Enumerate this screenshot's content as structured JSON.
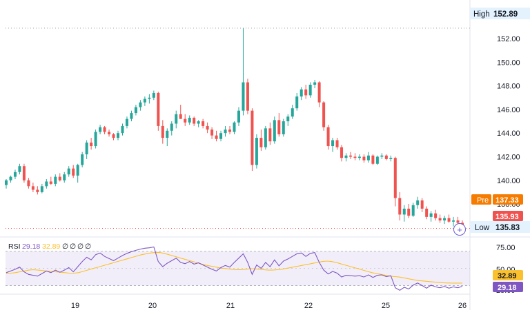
{
  "window": {
    "top_text": ""
  },
  "price_labels": {
    "high_label": "High",
    "high_value": "152.89",
    "pre_label": "Pre",
    "pre_value": "137.33",
    "last_value": "135.93",
    "low_label": "Low",
    "low_value": "135.83"
  },
  "rsi_legend": {
    "name": "RSI",
    "v1": "29.18",
    "v2": "32.89",
    "rest": [
      "∅",
      "∅",
      "∅",
      "∅"
    ]
  },
  "rsi_labels": {
    "top": "75.00",
    "mid": "50.00",
    "ma": "32.89",
    "rsi": "29.18",
    "bottom": "25.00"
  },
  "controls": {
    "add_icon": "plus-circle-icon",
    "add_glyph": "+"
  },
  "colors": {
    "up": "#26a69a",
    "down": "#ef5350",
    "rsi": "#7e57c2",
    "rsi_ma": "#fbc02d",
    "pre": "#f57c00",
    "low_bg": "#e3f2fd"
  },
  "chart_data": [
    {
      "type": "candlestick",
      "x_ticks": [
        "19",
        "20",
        "21",
        "22",
        "25",
        "26"
      ],
      "y_ticks": [
        138,
        140,
        142,
        144,
        146,
        148,
        150,
        152
      ],
      "y_tick_labels": [
        "138.00",
        "140.00",
        "142.00",
        "144.00",
        "146.00",
        "148.00",
        "150.00",
        "152.00"
      ],
      "ylim": [
        135.2,
        154.4
      ],
      "grid": false,
      "high": 152.89,
      "low": 135.83,
      "last": 135.93,
      "pre": 137.33,
      "ohlc": [
        [
          139.6,
          140.1,
          139.3,
          140.0
        ],
        [
          140.0,
          140.4,
          139.8,
          140.3
        ],
        [
          140.3,
          140.9,
          140.1,
          140.7
        ],
        [
          140.7,
          141.4,
          140.5,
          141.2
        ],
        [
          141.2,
          141.4,
          139.8,
          140.0
        ],
        [
          140.0,
          140.2,
          139.3,
          139.5
        ],
        [
          139.5,
          139.8,
          139.0,
          139.2
        ],
        [
          139.2,
          139.5,
          138.8,
          139.0
        ],
        [
          139.0,
          139.7,
          138.9,
          139.5
        ],
        [
          139.5,
          140.1,
          139.3,
          139.9
        ],
        [
          139.9,
          140.3,
          139.6,
          139.7
        ],
        [
          139.7,
          140.5,
          139.5,
          140.3
        ],
        [
          140.3,
          140.6,
          139.9,
          140.0
        ],
        [
          140.0,
          140.7,
          139.8,
          140.5
        ],
        [
          140.5,
          141.2,
          140.3,
          141.0
        ],
        [
          141.0,
          141.3,
          140.2,
          140.4
        ],
        [
          140.4,
          141.4,
          139.8,
          141.3
        ],
        [
          141.3,
          142.4,
          141.1,
          142.2
        ],
        [
          142.2,
          143.4,
          141.8,
          143.2
        ],
        [
          143.2,
          143.6,
          142.6,
          142.9
        ],
        [
          142.9,
          144.3,
          142.7,
          144.1
        ],
        [
          144.1,
          144.7,
          143.9,
          144.5
        ],
        [
          144.5,
          144.6,
          143.9,
          144.1
        ],
        [
          144.1,
          144.3,
          143.7,
          143.9
        ],
        [
          143.9,
          144.0,
          143.4,
          143.6
        ],
        [
          143.6,
          144.2,
          143.4,
          144.0
        ],
        [
          144.0,
          144.8,
          143.8,
          144.6
        ],
        [
          144.6,
          145.4,
          144.4,
          145.2
        ],
        [
          145.2,
          145.9,
          145.0,
          145.7
        ],
        [
          145.7,
          146.4,
          145.5,
          146.2
        ],
        [
          146.2,
          146.8,
          145.9,
          146.6
        ],
        [
          146.6,
          147.1,
          146.3,
          146.9
        ],
        [
          146.9,
          147.3,
          146.5,
          147.0
        ],
        [
          147.0,
          147.6,
          146.8,
          147.4
        ],
        [
          147.4,
          147.5,
          144.2,
          144.6
        ],
        [
          144.6,
          145.1,
          143.1,
          143.6
        ],
        [
          143.6,
          144.4,
          142.9,
          144.2
        ],
        [
          144.2,
          145.0,
          143.8,
          144.8
        ],
        [
          144.8,
          145.9,
          144.4,
          145.6
        ],
        [
          145.6,
          146.4,
          145.2,
          145.2
        ],
        [
          145.2,
          145.6,
          144.6,
          144.9
        ],
        [
          144.9,
          145.5,
          144.7,
          145.3
        ],
        [
          145.3,
          145.4,
          144.6,
          144.8
        ],
        [
          144.8,
          145.1,
          144.5,
          145.0
        ],
        [
          145.0,
          145.2,
          144.4,
          144.6
        ],
        [
          144.6,
          144.9,
          144.0,
          144.3
        ],
        [
          144.3,
          144.5,
          143.5,
          143.8
        ],
        [
          143.8,
          144.2,
          143.3,
          143.5
        ],
        [
          143.5,
          144.2,
          143.3,
          144.0
        ],
        [
          144.0,
          144.6,
          143.7,
          144.3
        ],
        [
          144.3,
          144.6,
          143.9,
          144.1
        ],
        [
          144.1,
          145.0,
          143.9,
          144.9
        ],
        [
          144.9,
          146.2,
          144.6,
          145.9
        ],
        [
          145.9,
          152.9,
          145.5,
          148.3
        ],
        [
          148.3,
          148.6,
          145.6,
          145.9
        ],
        [
          145.9,
          146.1,
          140.8,
          141.3
        ],
        [
          141.3,
          143.9,
          141.0,
          143.6
        ],
        [
          143.6,
          144.3,
          142.5,
          142.8
        ],
        [
          142.8,
          144.6,
          142.6,
          144.4
        ],
        [
          144.4,
          144.9,
          143.0,
          143.3
        ],
        [
          143.3,
          145.4,
          143.1,
          145.1
        ],
        [
          145.1,
          145.7,
          143.7,
          143.9
        ],
        [
          143.9,
          145.2,
          143.7,
          145.0
        ],
        [
          145.0,
          145.6,
          144.6,
          145.4
        ],
        [
          145.4,
          146.4,
          145.2,
          146.1
        ],
        [
          146.1,
          147.4,
          145.9,
          147.1
        ],
        [
          147.1,
          147.9,
          146.8,
          147.7
        ],
        [
          147.7,
          148.1,
          146.9,
          147.2
        ],
        [
          147.2,
          148.3,
          147.0,
          148.1
        ],
        [
          148.1,
          148.5,
          147.8,
          148.3
        ],
        [
          148.3,
          148.4,
          146.2,
          146.6
        ],
        [
          146.6,
          146.7,
          144.2,
          144.5
        ],
        [
          144.5,
          144.7,
          142.6,
          142.9
        ],
        [
          142.9,
          143.6,
          142.4,
          143.4
        ],
        [
          143.4,
          143.6,
          142.6,
          142.8
        ],
        [
          142.8,
          143.0,
          141.6,
          141.9
        ],
        [
          141.9,
          142.3,
          141.6,
          142.1
        ],
        [
          142.1,
          142.4,
          141.8,
          142.0
        ],
        [
          142.0,
          142.3,
          141.7,
          141.9
        ],
        [
          141.9,
          142.2,
          141.7,
          142.0
        ],
        [
          142.0,
          142.2,
          141.5,
          141.7
        ],
        [
          141.7,
          142.4,
          141.5,
          142.1
        ],
        [
          142.1,
          142.2,
          141.3,
          141.4
        ],
        [
          141.4,
          142.1,
          141.3,
          142.0
        ],
        [
          142.0,
          142.3,
          141.8,
          142.1
        ],
        [
          142.1,
          142.2,
          141.7,
          141.8
        ],
        [
          141.8,
          142.1,
          141.6,
          141.9
        ],
        [
          141.9,
          142.0,
          137.8,
          138.5
        ],
        [
          138.5,
          139.0,
          136.6,
          137.1
        ],
        [
          137.1,
          137.9,
          136.5,
          137.6
        ],
        [
          137.6,
          138.0,
          136.8,
          137.0
        ],
        [
          137.0,
          138.1,
          136.9,
          137.9
        ],
        [
          137.9,
          138.6,
          137.6,
          138.3
        ],
        [
          138.3,
          138.5,
          137.3,
          137.6
        ],
        [
          137.6,
          137.8,
          136.7,
          136.9
        ],
        [
          136.9,
          137.4,
          136.5,
          137.2
        ],
        [
          137.2,
          137.5,
          136.6,
          136.8
        ],
        [
          136.8,
          137.1,
          136.4,
          136.6
        ],
        [
          136.6,
          137.0,
          136.3,
          136.8
        ],
        [
          136.8,
          137.1,
          136.4,
          136.5
        ],
        [
          136.5,
          136.9,
          136.1,
          136.6
        ],
        [
          136.6,
          136.9,
          136.2,
          136.4
        ],
        [
          136.4,
          136.6,
          135.8,
          135.93
        ]
      ]
    },
    {
      "type": "line",
      "name": "RSI",
      "ylim": [
        20,
        85
      ],
      "y_ticks": [
        75,
        50,
        25
      ],
      "band": [
        30,
        70
      ],
      "series": [
        {
          "name": "",
          "values": [
            44.0,
            44.5,
            45.0,
            46.0,
            47.0,
            48.0,
            48.5,
            48.0,
            47.5,
            47.0,
            46.5,
            46.0,
            45.5,
            45.0,
            44.5,
            44.5,
            45.0,
            46.5,
            48.0,
            49.5,
            51.0,
            52.5,
            54.0,
            55.5,
            57.0,
            58.5,
            60.0,
            61.5,
            63.0,
            64.5,
            66.0,
            67.0,
            68.0,
            68.5,
            68.5,
            67.5,
            66.0,
            64.5,
            63.0,
            61.5,
            60.0,
            58.5,
            57.0,
            55.5,
            54.0,
            53.0,
            52.0,
            51.0,
            50.0,
            49.5,
            49.0,
            48.5,
            48.5,
            49.0,
            49.5,
            49.5,
            49.0,
            48.5,
            48.0,
            48.0,
            48.5,
            49.0,
            50.0,
            51.0,
            52.0,
            53.0,
            54.0,
            55.0,
            56.0,
            57.0,
            58.0,
            58.5,
            58.0,
            57.0,
            55.5,
            54.0,
            52.5,
            51.0,
            49.5,
            48.0,
            46.5,
            45.0,
            44.0,
            43.0,
            42.0,
            41.0,
            40.5,
            40.0,
            39.0,
            38.0,
            37.0,
            36.0,
            35.5,
            35.0,
            34.5,
            34.0,
            33.5,
            33.2,
            33.0,
            32.9,
            32.9,
            32.89
          ]
        },
        {
          "name": "",
          "values": [
            45.0,
            47.0,
            49.0,
            51.5,
            46.0,
            43.0,
            42.0,
            41.0,
            44.0,
            47.0,
            45.0,
            48.0,
            45.5,
            48.0,
            51.0,
            46.0,
            52.0,
            58.0,
            63.0,
            60.0,
            66.0,
            68.0,
            64.0,
            61.5,
            59.0,
            62.0,
            65.0,
            67.5,
            69.5,
            71.0,
            72.5,
            73.5,
            74.0,
            75.0,
            58.0,
            52.0,
            56.0,
            59.0,
            62.0,
            57.0,
            55.5,
            58.0,
            55.0,
            56.5,
            54.0,
            51.5,
            49.0,
            47.0,
            51.0,
            53.5,
            51.5,
            57.0,
            62.0,
            67.0,
            57.0,
            43.0,
            54.0,
            50.0,
            57.0,
            52.0,
            60.0,
            53.0,
            58.5,
            61.0,
            64.0,
            67.0,
            68.0,
            64.0,
            67.5,
            68.5,
            57.0,
            48.0,
            43.5,
            46.5,
            44.5,
            40.0,
            42.0,
            41.5,
            41.0,
            41.5,
            40.0,
            42.5,
            39.5,
            42.0,
            42.5,
            40.5,
            41.5,
            27.5,
            24.5,
            28.0,
            26.0,
            30.5,
            33.0,
            30.0,
            27.0,
            30.5,
            28.5,
            27.5,
            29.0,
            27.0,
            28.5,
            27.5,
            29.18
          ]
        }
      ]
    }
  ]
}
